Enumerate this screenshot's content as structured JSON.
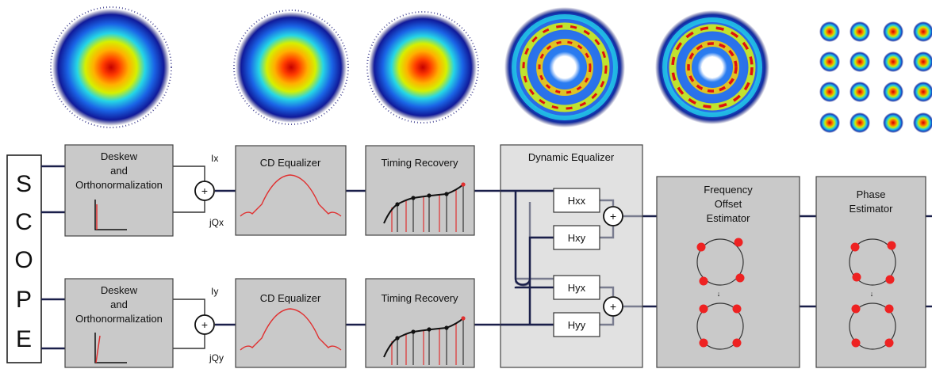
{
  "scope": {
    "letters": [
      "S",
      "C",
      "O",
      "P",
      "E"
    ]
  },
  "blocks": {
    "deskew_top": {
      "line1": "Deskew",
      "line2": "and",
      "line3": "Orthonormalization"
    },
    "deskew_bottom": {
      "line1": "Deskew",
      "line2": "and",
      "line3": "Orthonormalization"
    },
    "cd_top": {
      "label": "CD Equalizer"
    },
    "cd_bottom": {
      "label": "CD Equalizer"
    },
    "timing_top": {
      "label": "Timing Recovery"
    },
    "timing_bottom": {
      "label": "Timing Recovery"
    },
    "dynamic": {
      "label": "Dynamic Equalizer",
      "hxx": "Hxx",
      "hxy": "Hxy",
      "hyx": "Hyx",
      "hyy": "Hyy"
    },
    "freq": {
      "line1": "Frequency",
      "line2": "Offset",
      "line3": "Estimator"
    },
    "phase": {
      "line1": "Phase",
      "line2": "Estimator"
    }
  },
  "ports": {
    "ix": "Ix",
    "jqx": "jQx",
    "iy": "Iy",
    "jqy": "jQy"
  },
  "symbols": {
    "adder": "+"
  },
  "colors": {
    "block_fill": "#c9c9c9",
    "wire": "#1a1f4a",
    "curve": "#e03030",
    "dot": "#ee2222"
  }
}
